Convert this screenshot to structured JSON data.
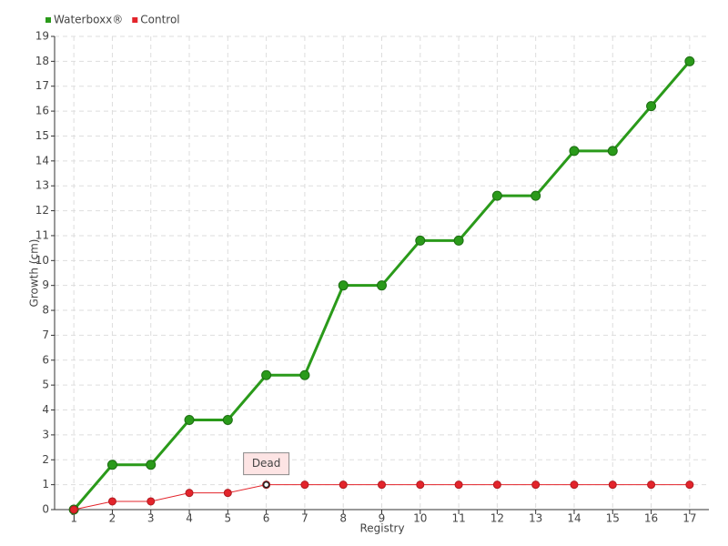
{
  "chart_data": {
    "type": "line",
    "categories": [
      "1",
      "2",
      "3",
      "4",
      "5",
      "6",
      "7",
      "8",
      "9",
      "10",
      "11",
      "12",
      "13",
      "14",
      "15",
      "16",
      "17"
    ],
    "series": [
      {
        "name": "Waterboxx®",
        "color": "#2a9a1a",
        "values": [
          0,
          1.8,
          1.8,
          3.6,
          3.6,
          5.4,
          5.4,
          9,
          9,
          10.8,
          10.8,
          12.6,
          12.6,
          14.4,
          14.4,
          16.2,
          18
        ]
      },
      {
        "name": "Control",
        "color": "#e3242b",
        "values": [
          0,
          0.33,
          0.33,
          0.67,
          0.67,
          1,
          1,
          1,
          1,
          1,
          1,
          1,
          1,
          1,
          1,
          1,
          1
        ]
      }
    ],
    "ylim": [
      0,
      19
    ],
    "yticks": [
      0,
      1,
      2,
      3,
      4,
      5,
      6,
      7,
      8,
      9,
      10,
      11,
      12,
      13,
      14,
      15,
      16,
      17,
      18,
      19
    ],
    "ylabel": "Growth (cm)",
    "xlabel": "Registry",
    "grid": true,
    "legend": "top-left",
    "annotations": [
      {
        "text": "Dead",
        "x": "6",
        "y": 1
      }
    ]
  }
}
